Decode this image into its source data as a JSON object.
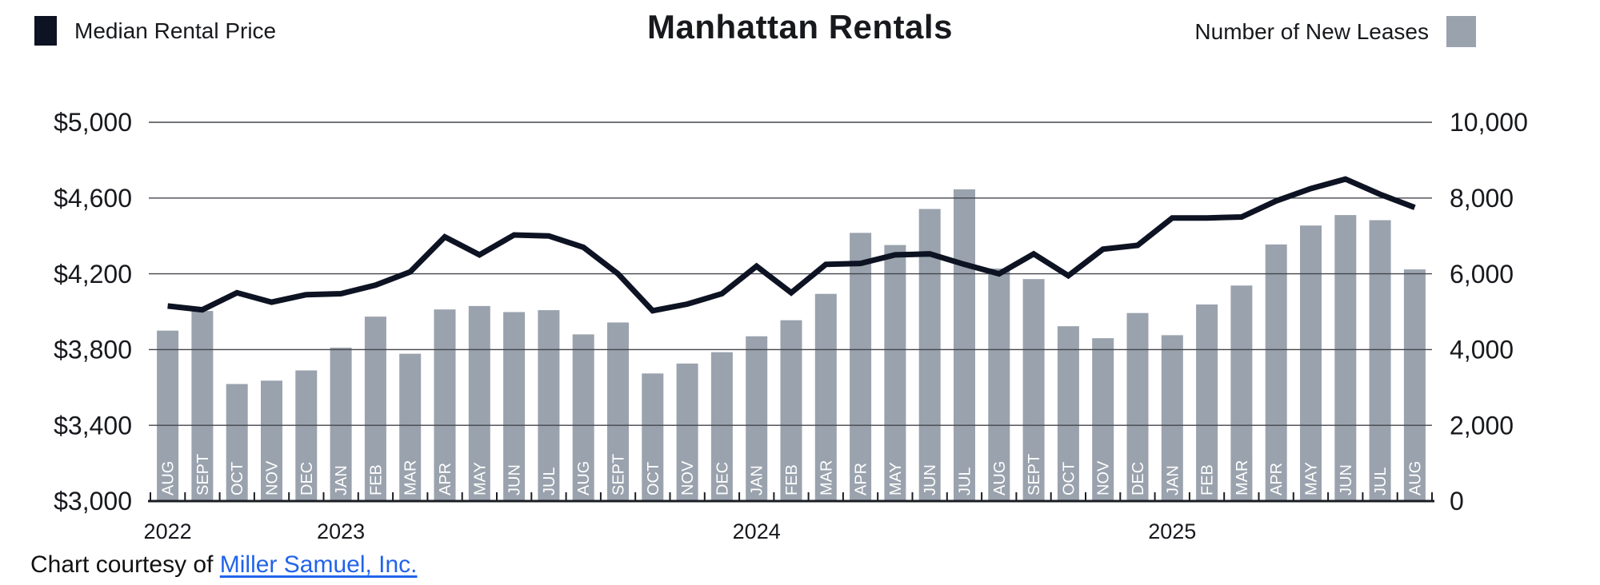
{
  "header": {
    "title": "Manhattan Rentals",
    "legend_left": {
      "label": "Median Rental Price",
      "color": "#0d1322"
    },
    "legend_right": {
      "label": "Number of New Leases",
      "color": "#9aa2ad"
    }
  },
  "footer": {
    "prefix": "Chart courtesy of ",
    "link_text": "Miller Samuel, Inc."
  },
  "colors": {
    "line": "#0d1322",
    "bar": "#9aa2ad",
    "gridline": "#43464d",
    "axis": "#1a1d24",
    "month_label": "#ffffff",
    "text": "#17191d",
    "link_blue": "#2263ea"
  },
  "chart_data": {
    "type": "bar+line",
    "title": "Manhattan Rentals",
    "grid": true,
    "legend_position": "top",
    "categories": [
      "AUG",
      "SEPT",
      "OCT",
      "NOV",
      "DEC",
      "JAN",
      "FEB",
      "MAR",
      "APR",
      "MAY",
      "JUN",
      "JUL",
      "AUG",
      "SEPT",
      "OCT",
      "NOV",
      "DEC",
      "JAN",
      "FEB",
      "MAR",
      "APR",
      "MAY",
      "JUN",
      "JUL",
      "AUG",
      "SEPT",
      "OCT",
      "NOV",
      "DEC",
      "JAN",
      "FEB",
      "MAR",
      "APR",
      "MAY",
      "JUN",
      "JUL",
      "AUG"
    ],
    "year_labels": [
      {
        "index": 0,
        "label": "2022"
      },
      {
        "index": 5,
        "label": "2023"
      },
      {
        "index": 17,
        "label": "2024"
      },
      {
        "index": 29,
        "label": "2025"
      }
    ],
    "series": [
      {
        "name": "Median Rental Price",
        "type": "line",
        "axis": "left",
        "color": "#0d1322",
        "values": [
          4030,
          4010,
          4100,
          4050,
          4090,
          4095,
          4140,
          4210,
          4395,
          4300,
          4405,
          4400,
          4340,
          4200,
          4005,
          4040,
          4095,
          4240,
          4100,
          4250,
          4255,
          4300,
          4305,
          4250,
          4200,
          4305,
          4190,
          4330,
          4350,
          4495,
          4495,
          4500,
          4585,
          4650,
          4700,
          4620,
          4550
        ]
      },
      {
        "name": "Number of New Leases",
        "type": "bar",
        "axis": "right",
        "color": "#9aa2ad",
        "values": [
          4500,
          5020,
          3090,
          3180,
          3450,
          4050,
          4870,
          3890,
          5060,
          5150,
          4990,
          5040,
          4400,
          4715,
          3370,
          3630,
          3930,
          4350,
          4775,
          5470,
          7080,
          6760,
          7710,
          8230,
          6140,
          5860,
          4615,
          4300,
          4965,
          4380,
          5190,
          5690,
          6775,
          7275,
          7550,
          7415,
          6115
        ]
      }
    ],
    "left_axis": {
      "min": 3000,
      "max": 5000,
      "step": 400,
      "tick_labels": [
        "$3,000",
        "$3,400",
        "$3,800",
        "$4,200",
        "$4,600",
        "$5,000"
      ]
    },
    "right_axis": {
      "min": 0,
      "max": 10000,
      "step": 2000,
      "tick_labels": [
        "0",
        "2,000",
        "4,000",
        "6,000",
        "8,000",
        "10,000"
      ]
    }
  }
}
